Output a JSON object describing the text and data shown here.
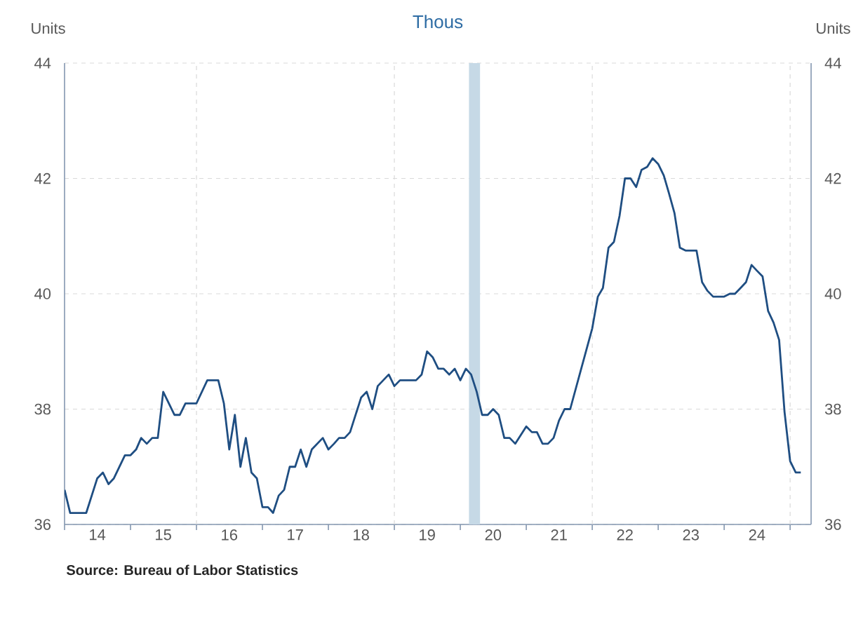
{
  "chart_data": {
    "type": "line",
    "title": "Thous",
    "ylabel": "Units",
    "y2label": "Units",
    "annotations": [
      "**Source:  Bureau of Labor Statistics**"
    ],
    "color": "#1f4e82",
    "x": [
      "2014-01",
      "2014-02",
      "2014-05",
      "2014-07",
      "2014-08",
      "2014-09",
      "2014-10",
      "2014-12",
      "2015-01",
      "2015-02",
      "2015-03",
      "2015-04",
      "2015-05",
      "2015-06",
      "2015-07",
      "2015-09",
      "2015-10",
      "2015-11",
      "2016-01",
      "2016-03",
      "2016-05",
      "2016-06",
      "2016-07",
      "2016-08",
      "2016-09",
      "2016-10",
      "2016-11",
      "2016-12",
      "2017-01",
      "2017-02",
      "2017-03",
      "2017-04",
      "2017-05",
      "2017-06",
      "2017-07",
      "2017-08",
      "2017-09",
      "2017-10",
      "2017-12",
      "2018-01",
      "2018-02",
      "2018-03",
      "2018-04",
      "2018-05",
      "2018-07",
      "2018-08",
      "2018-09",
      "2018-10",
      "2018-12",
      "2019-01",
      "2019-02",
      "2019-05",
      "2019-06",
      "2019-07",
      "2019-08",
      "2019-09",
      "2019-10",
      "2019-11",
      "2019-12",
      "2020-01",
      "2020-02",
      "2020-03",
      "2020-04",
      "2020-05",
      "2020-06",
      "2020-07",
      "2020-08",
      "2020-09",
      "2020-10",
      "2020-11",
      "2021-01",
      "2021-02",
      "2021-03",
      "2021-04",
      "2021-05",
      "2021-06",
      "2021-07",
      "2021-08",
      "2021-09",
      "2021-11",
      "2022-01",
      "2022-02",
      "2022-03",
      "2022-04",
      "2022-05",
      "2022-06",
      "2022-07",
      "2022-08",
      "2022-09",
      "2022-10",
      "2022-11",
      "2022-12",
      "2023-01",
      "2023-02",
      "2023-03",
      "2023-04",
      "2023-05",
      "2023-06",
      "2023-07",
      "2023-08",
      "2023-09",
      "2023-10",
      "2023-11",
      "2024-01",
      "2024-02",
      "2024-03",
      "2024-04",
      "2024-05",
      "2024-06",
      "2024-07",
      "2024-08",
      "2024-09",
      "2024-10",
      "2024-11",
      "2024-12",
      "2025-01",
      "2025-02",
      "2025-03"
    ],
    "values": [
      36.6,
      36.2,
      36.2,
      36.8,
      36.9,
      36.7,
      36.8,
      37.2,
      37.2,
      37.3,
      37.5,
      37.4,
      37.5,
      37.5,
      38.3,
      37.9,
      37.9,
      38.1,
      38.1,
      38.5,
      38.5,
      38.1,
      37.3,
      37.9,
      37.0,
      37.5,
      36.9,
      36.8,
      36.3,
      36.3,
      36.2,
      36.5,
      36.6,
      37.0,
      37.0,
      37.3,
      37.0,
      37.3,
      37.5,
      37.3,
      37.4,
      37.5,
      37.5,
      37.6,
      38.2,
      38.3,
      38.0,
      38.4,
      38.6,
      38.4,
      38.5,
      38.5,
      38.6,
      39.0,
      38.9,
      38.7,
      38.7,
      38.6,
      38.7,
      38.5,
      38.7,
      38.6,
      38.3,
      37.9,
      37.9,
      38.0,
      37.9,
      37.5,
      37.5,
      37.4,
      37.7,
      37.6,
      37.6,
      37.4,
      37.4,
      37.5,
      37.8,
      38.0,
      38.0,
      38.7,
      39.4,
      39.95,
      40.1,
      40.8,
      40.9,
      41.35,
      42.0,
      42.0,
      41.85,
      42.15,
      42.2,
      42.35,
      42.25,
      42.05,
      41.75,
      41.4,
      40.8,
      40.75,
      40.75,
      40.75,
      40.2,
      40.05,
      39.95,
      39.95,
      40.0,
      40.0,
      40.1,
      40.2,
      40.5,
      40.4,
      40.3,
      39.7,
      39.5,
      39.2,
      37.95,
      37.1,
      36.9,
      36.9
    ],
    "xlim": [
      "2014-01-01",
      "2025-04-27"
    ],
    "xticks": [
      {
        "value": "2014-01-01",
        "label": null
      },
      {
        "value": "2015-01-01",
        "label": null
      },
      {
        "value": "2016-01-01",
        "label": null
      },
      {
        "value": "2017-01-01",
        "label": null
      },
      {
        "value": "2018-01-01",
        "label": null
      },
      {
        "value": "2019-01-01",
        "label": null
      },
      {
        "value": "2020-01-01",
        "label": null
      },
      {
        "value": "2021-01-01",
        "label": null
      },
      {
        "value": "2022-01-01",
        "label": null
      },
      {
        "value": "2023-01-01",
        "label": null
      },
      {
        "value": "2024-01-01",
        "label": null
      },
      {
        "value": "2025-01-01",
        "label": null
      },
      {
        "value": "2014-07-01",
        "label": "14"
      },
      {
        "value": "2015-07-01",
        "label": "15"
      },
      {
        "value": "2016-07-01",
        "label": "16"
      },
      {
        "value": "2017-07-01",
        "label": "17"
      },
      {
        "value": "2018-07-01",
        "label": "18"
      },
      {
        "value": "2019-07-01",
        "label": "19"
      },
      {
        "value": "2020-07-01",
        "label": "20"
      },
      {
        "value": "2021-07-01",
        "label": "21"
      },
      {
        "value": "2022-07-01",
        "label": "22"
      },
      {
        "value": "2023-07-01",
        "label": "23"
      },
      {
        "value": "2024-07-01",
        "label": "24"
      }
    ],
    "ylim": [
      36,
      44
    ],
    "yticks": [
      36,
      38,
      40,
      42,
      44
    ],
    "y2lim": [
      36,
      44
    ],
    "y2ticks": [
      36,
      38,
      40,
      42,
      44
    ],
    "grid": "y",
    "bands": [
      {
        "axis": "x",
        "from": "2020-02-18",
        "to": "2020-04-20",
        "color": "#c6d9e6"
      }
    ],
    "ref_lines": [
      {
        "axis": "x",
        "value": "2016-01-01",
        "color": "#d9d9d9",
        "line_style": "dashed"
      },
      {
        "axis": "x",
        "value": "2019-01-01",
        "color": "#d9d9d9",
        "line_style": "dashed"
      },
      {
        "axis": "x",
        "value": "2022-01-01",
        "color": "#d9d9d9",
        "line_style": "dashed"
      },
      {
        "axis": "x",
        "value": "2025-01-01",
        "color": "#d9d9d9",
        "line_style": "dashed"
      }
    ]
  }
}
